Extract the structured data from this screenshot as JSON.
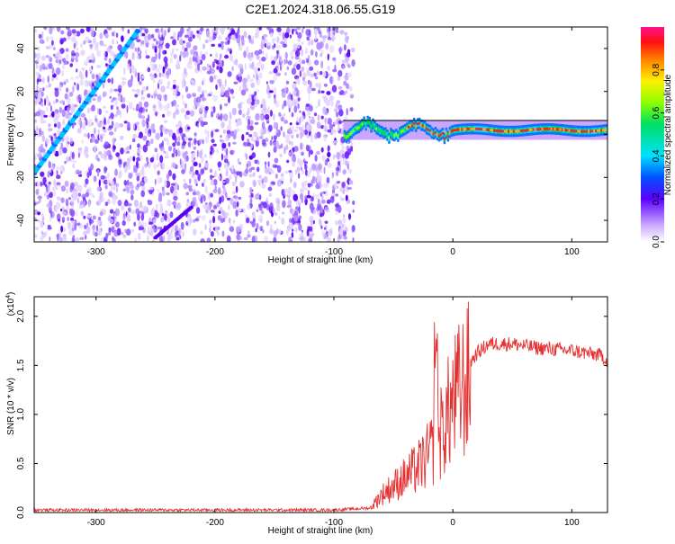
{
  "title": "C2E1.2024.318.06.55.G19",
  "chart_data": [
    {
      "type": "heatmap",
      "name": "spectrogram",
      "xlabel": "Height of straight line (km)",
      "ylabel": "Frequency (Hz)",
      "xlim": [
        -352,
        130
      ],
      "ylim": [
        -50,
        50
      ],
      "xticks": [
        -300,
        -200,
        -100,
        0,
        100
      ],
      "yticks": [
        -40,
        -20,
        0,
        20,
        40
      ],
      "noise_region": [
        -352,
        -88
      ],
      "tone_band_center_hz": 2,
      "signal_ramp": {
        "x": [
          -352,
          -265
        ],
        "y": [
          -18,
          48
        ]
      },
      "colorbar": {
        "label": "Normalized spectral amplitude",
        "range": [
          0,
          1
        ],
        "ticks": [
          "0.0",
          "0.2",
          "0.4",
          "0.6",
          "0.8"
        ],
        "tick_values": [
          0,
          0.2,
          0.4,
          0.6,
          0.8
        ]
      }
    },
    {
      "type": "line",
      "name": "snr",
      "xlabel": "Height of straight line (km)",
      "ylabel": "SNR (10 * v/v)",
      "exponent_label": "(x10",
      "exponent_power": "4",
      "exponent_close": ")",
      "xlim": [
        -352,
        130
      ],
      "ylim": [
        0,
        2.2
      ],
      "xticks": [
        -300,
        -200,
        -100,
        0,
        100
      ],
      "yticks": [
        "0.0",
        "0.5",
        "1.0",
        "1.5",
        "2.0"
      ],
      "ytick_values": [
        0,
        0.5,
        1.0,
        1.5,
        2.0
      ],
      "color": "#e53030",
      "trend": {
        "x": [
          -352,
          -100,
          -70,
          -60,
          -50,
          -40,
          -30,
          -20,
          -10,
          0,
          10,
          20,
          30,
          50,
          70,
          100,
          125,
          130
        ],
        "y": [
          0.02,
          0.02,
          0.04,
          0.2,
          0.3,
          0.4,
          0.5,
          0.65,
          0.9,
          1.25,
          1.45,
          1.62,
          1.72,
          1.72,
          1.68,
          1.65,
          1.6,
          1.55
        ]
      }
    }
  ]
}
